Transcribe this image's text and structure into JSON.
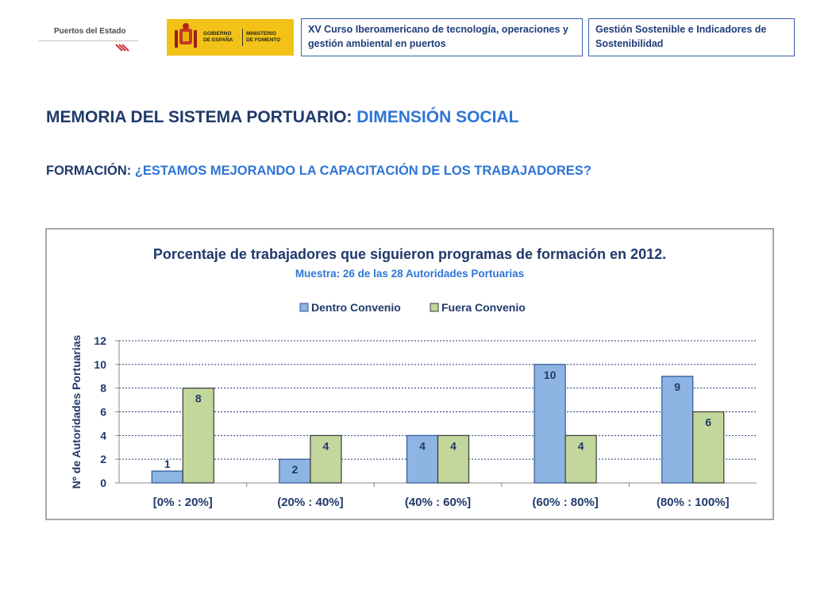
{
  "header": {
    "logo_puertos": "Puertos del Estado",
    "logo_gobierno": "GOBIERNO\nDE ESPAÑA",
    "logo_ministerio": "MINISTERIO\nDE FOMENTO",
    "curso": "XV Curso Iberoamericano de tecnología, operaciones y gestión ambiental en puertos",
    "gestion": "Gestión Sostenible e Indicadores de Sostenibilidad"
  },
  "heading": {
    "title_prefix": "MEMORIA DEL SISTEMA PORTUARIO:",
    "title_highlight": "DIMENSIÓN SOCIAL",
    "subtitle_prefix": "FORMACIÓN:",
    "subtitle_highlight": "¿ESTAMOS MEJORANDO LA CAPACITACIÓN DE LOS TRABAJADORES?"
  },
  "colors": {
    "dentro": "#8eb4e3",
    "dentro_border": "#2f5597",
    "fuera": "#c3d69b",
    "fuera_border": "#3a3a3a",
    "chart_title": "#1f3a6b",
    "chart_subtitle": "#2e75d6"
  },
  "chart_data": {
    "type": "bar",
    "title": "Porcentaje de trabajadores que siguieron programas de formación en 2012.",
    "subtitle": "Muestra: 26 de las 28 Autoridades Portuarias",
    "xlabel": "",
    "ylabel": "Nº de Autoridades Portuarias",
    "ylim": [
      0,
      12
    ],
    "yticks": [
      0,
      2,
      4,
      6,
      8,
      10,
      12
    ],
    "grid": true,
    "legend_position": "top",
    "categories": [
      "[0% : 20%]",
      "(20% : 40%]",
      "(40% : 60%]",
      "(60% : 80%]",
      "(80% : 100%]"
    ],
    "series": [
      {
        "name": "Dentro Convenio",
        "values": [
          1,
          2,
          4,
          10,
          9
        ]
      },
      {
        "name": "Fuera Convenio",
        "values": [
          8,
          4,
          4,
          4,
          6
        ]
      }
    ]
  }
}
